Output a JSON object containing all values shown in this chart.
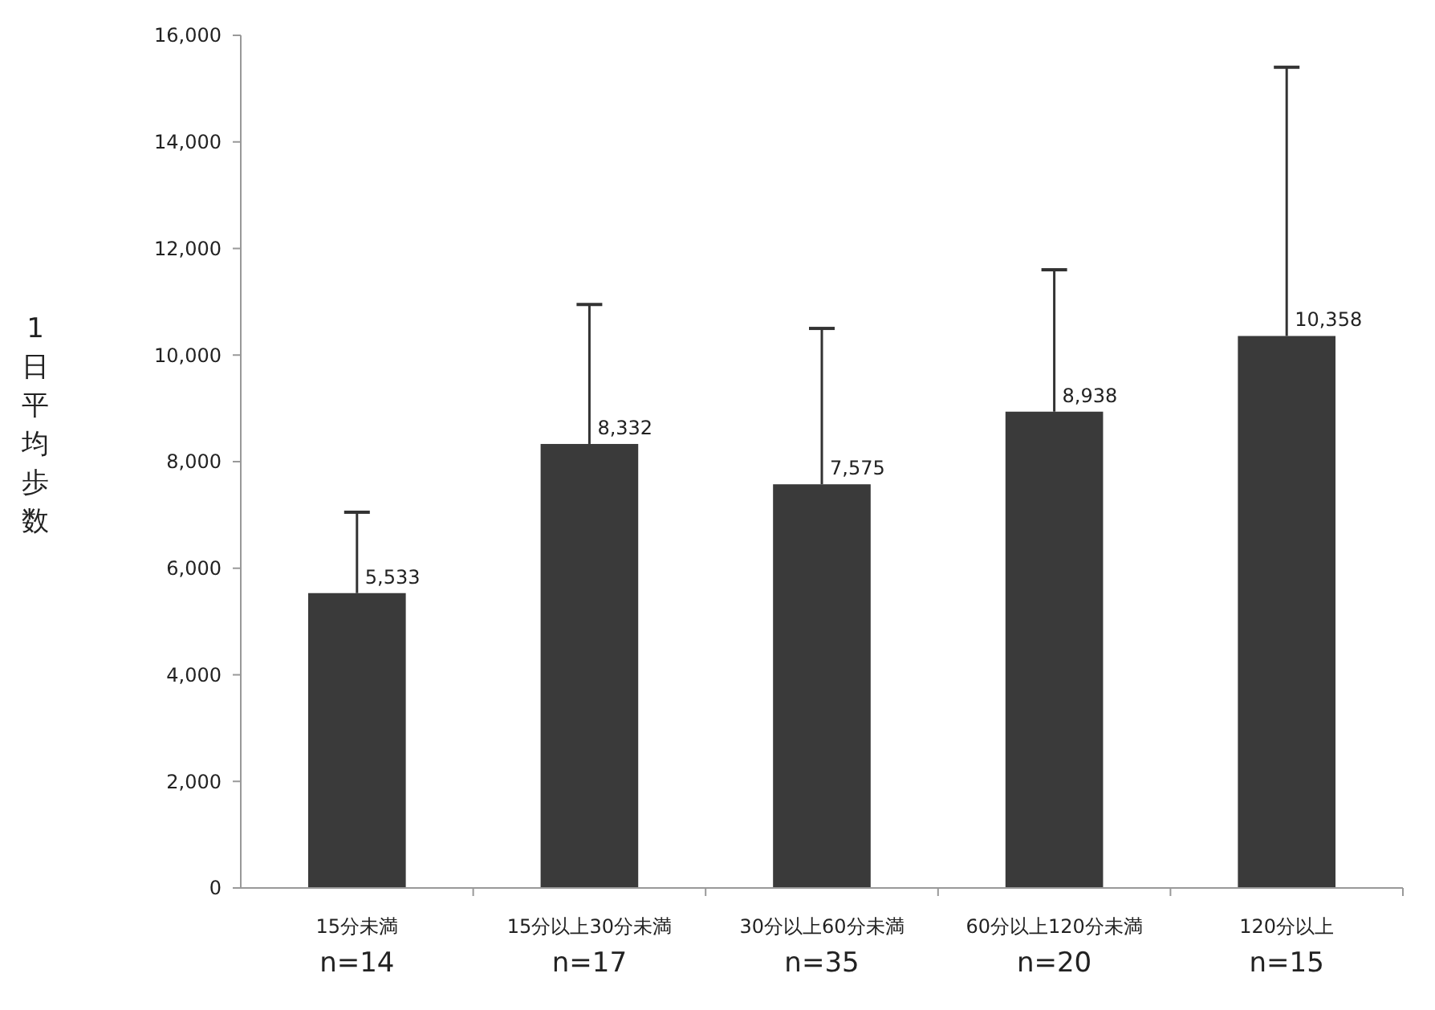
{
  "chart_data": {
    "type": "bar",
    "ylabel": "1日平均歩数",
    "categories": [
      "15分未満\nn=14",
      "15分以上30分未満\nn=17",
      "30分以上60分未満\nn=35",
      "60分以上120分未満\nn=20",
      "120分以上\nn=15"
    ],
    "values": [
      5533,
      8332,
      7575,
      8938,
      10358
    ],
    "value_labels": [
      "5,533",
      "8,332",
      "7,575",
      "8,938",
      "10,358"
    ],
    "errors": [
      [
        5533,
        7050
      ],
      [
        8332,
        10950
      ],
      [
        7575,
        10500
      ],
      [
        8938,
        11600
      ],
      [
        10358,
        15400
      ]
    ],
    "color": "#3a3a3a",
    "ylim": [
      0,
      16000
    ],
    "yticks": [
      {
        "value": 0,
        "label": "0"
      },
      {
        "value": 2000,
        "label": "2,000"
      },
      {
        "value": 4000,
        "label": "4,000"
      },
      {
        "value": 6000,
        "label": "6,000"
      },
      {
        "value": 8000,
        "label": "8,000"
      },
      {
        "value": 10000,
        "label": "10,000"
      },
      {
        "value": 12000,
        "label": "12,000"
      },
      {
        "value": 14000,
        "label": "14,000"
      },
      {
        "value": 16000,
        "label": "16,000"
      }
    ],
    "grid": false
  }
}
